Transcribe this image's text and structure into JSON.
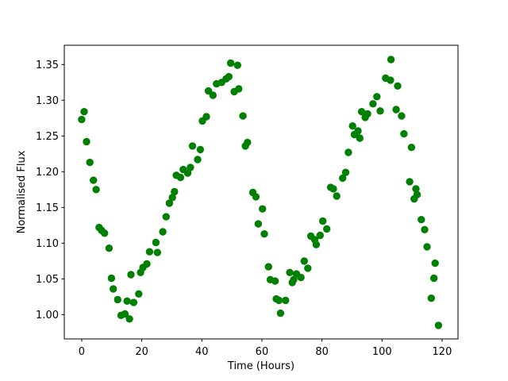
{
  "figure": {
    "background": "#ffffff"
  },
  "chart_data": {
    "type": "scatter",
    "title": "",
    "xlabel": "Time (Hours)",
    "ylabel": "Normalised Flux",
    "xlim": [
      -5.8,
      125.3
    ],
    "ylim": [
      0.966,
      1.377
    ],
    "grid": false,
    "legend": null,
    "marker": {
      "shape": "circle",
      "color": "#008000",
      "radius_px": 4.7
    },
    "x_ticks": [
      0,
      20,
      40,
      60,
      80,
      100,
      120
    ],
    "x_tick_labels": [
      "0",
      "20",
      "40",
      "60",
      "80",
      "100",
      "120"
    ],
    "y_ticks": [
      1.0,
      1.05,
      1.1,
      1.15,
      1.2,
      1.25,
      1.3,
      1.35
    ],
    "y_tick_labels": [
      "1.00",
      "1.05",
      "1.10",
      "1.15",
      "1.20",
      "1.25",
      "1.30",
      "1.35"
    ],
    "points": [
      [
        0.0,
        1.273
      ],
      [
        0.8,
        1.284
      ],
      [
        1.6,
        1.242
      ],
      [
        2.7,
        1.213
      ],
      [
        3.9,
        1.188
      ],
      [
        4.8,
        1.175
      ],
      [
        5.8,
        1.122
      ],
      [
        6.6,
        1.118
      ],
      [
        7.6,
        1.114
      ],
      [
        9.1,
        1.093
      ],
      [
        9.9,
        1.051
      ],
      [
        10.5,
        1.036
      ],
      [
        12.0,
        1.021
      ],
      [
        13.1,
        0.999
      ],
      [
        14.4,
        1.001
      ],
      [
        15.1,
        1.019
      ],
      [
        15.9,
        0.994
      ],
      [
        16.4,
        1.056
      ],
      [
        17.3,
        1.017
      ],
      [
        19.0,
        1.029
      ],
      [
        19.6,
        1.059
      ],
      [
        20.4,
        1.066
      ],
      [
        21.7,
        1.071
      ],
      [
        22.6,
        1.088
      ],
      [
        24.7,
        1.101
      ],
      [
        25.2,
        1.087
      ],
      [
        27.0,
        1.116
      ],
      [
        28.1,
        1.137
      ],
      [
        29.2,
        1.156
      ],
      [
        30.2,
        1.164
      ],
      [
        30.9,
        1.172
      ],
      [
        31.5,
        1.195
      ],
      [
        32.9,
        1.192
      ],
      [
        33.8,
        1.203
      ],
      [
        35.3,
        1.198
      ],
      [
        36.2,
        1.206
      ],
      [
        36.9,
        1.236
      ],
      [
        38.6,
        1.217
      ],
      [
        39.5,
        1.231
      ],
      [
        40.2,
        1.271
      ],
      [
        41.5,
        1.277
      ],
      [
        42.2,
        1.313
      ],
      [
        43.7,
        1.307
      ],
      [
        44.9,
        1.323
      ],
      [
        46.6,
        1.325
      ],
      [
        48.1,
        1.33
      ],
      [
        49.0,
        1.333
      ],
      [
        49.6,
        1.352
      ],
      [
        50.8,
        1.312
      ],
      [
        51.9,
        1.349
      ],
      [
        52.3,
        1.316
      ],
      [
        53.7,
        1.278
      ],
      [
        54.5,
        1.236
      ],
      [
        55.2,
        1.241
      ],
      [
        57.0,
        1.171
      ],
      [
        58.0,
        1.165
      ],
      [
        58.8,
        1.127
      ],
      [
        60.2,
        1.148
      ],
      [
        60.8,
        1.113
      ],
      [
        62.2,
        1.067
      ],
      [
        62.8,
        1.049
      ],
      [
        64.4,
        1.047
      ],
      [
        64.8,
        1.022
      ],
      [
        65.7,
        1.02
      ],
      [
        66.2,
        1.002
      ],
      [
        67.9,
        1.02
      ],
      [
        69.3,
        1.059
      ],
      [
        70.1,
        1.045
      ],
      [
        70.6,
        1.049
      ],
      [
        71.5,
        1.057
      ],
      [
        73.0,
        1.052
      ],
      [
        74.1,
        1.075
      ],
      [
        75.3,
        1.065
      ],
      [
        76.3,
        1.11
      ],
      [
        77.6,
        1.105
      ],
      [
        78.1,
        1.098
      ],
      [
        79.4,
        1.111
      ],
      [
        80.3,
        1.131
      ],
      [
        81.6,
        1.12
      ],
      [
        82.9,
        1.178
      ],
      [
        83.8,
        1.176
      ],
      [
        84.9,
        1.166
      ],
      [
        86.9,
        1.191
      ],
      [
        87.9,
        1.199
      ],
      [
        88.8,
        1.227
      ],
      [
        90.2,
        1.264
      ],
      [
        90.8,
        1.252
      ],
      [
        92.0,
        1.257
      ],
      [
        92.6,
        1.247
      ],
      [
        93.2,
        1.284
      ],
      [
        94.4,
        1.276
      ],
      [
        95.2,
        1.281
      ],
      [
        97.0,
        1.295
      ],
      [
        98.3,
        1.305
      ],
      [
        99.4,
        1.285
      ],
      [
        101.2,
        1.331
      ],
      [
        102.8,
        1.328
      ],
      [
        103.0,
        1.357
      ],
      [
        104.7,
        1.287
      ],
      [
        105.2,
        1.32
      ],
      [
        106.5,
        1.278
      ],
      [
        107.3,
        1.253
      ],
      [
        109.2,
        1.186
      ],
      [
        109.8,
        1.234
      ],
      [
        110.7,
        1.162
      ],
      [
        111.3,
        1.176
      ],
      [
        111.7,
        1.168
      ],
      [
        113.1,
        1.133
      ],
      [
        114.2,
        1.119
      ],
      [
        115.0,
        1.095
      ],
      [
        116.4,
        1.023
      ],
      [
        117.3,
        1.051
      ],
      [
        117.7,
        1.072
      ],
      [
        118.8,
        0.985
      ]
    ]
  }
}
